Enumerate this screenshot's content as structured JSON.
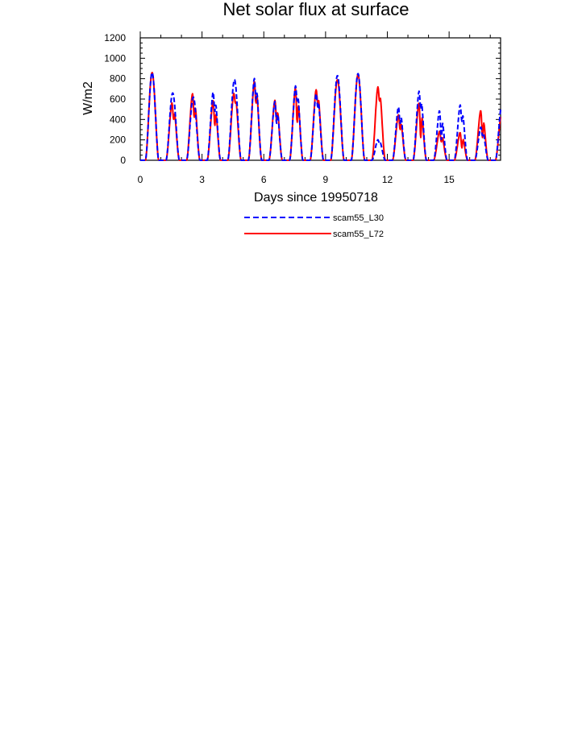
{
  "chart_data": {
    "type": "line",
    "title": "Net solar flux at surface",
    "xlabel": "Days since 19950718",
    "ylabel": "W/m2",
    "xlim": [
      0,
      17.5
    ],
    "ylim": [
      0,
      1200
    ],
    "x_ticks": [
      0,
      3,
      6,
      9,
      12,
      15
    ],
    "y_ticks": [
      0,
      200,
      400,
      600,
      800,
      1000,
      1200
    ],
    "grid": false,
    "legend": "below",
    "series": [
      {
        "name": "scam55_L30",
        "color": "#0000ff",
        "dash": "dashed",
        "day_peaks": [
          860,
          660,
          620,
          700,
          790,
          840,
          610,
          760,
          680,
          830,
          850,
          210,
          550,
          710,
          520,
          570,
          340,
          560
        ],
        "day_dips": [
          null,
          null,
          null,
          480,
          null,
          600,
          360,
          580,
          520,
          null,
          null,
          160,
          360,
          500,
          200,
          380,
          240,
          null
        ]
      },
      {
        "name": "scam55_L72",
        "color": "#ff0000",
        "dash": "solid",
        "day_peaks": [
          860,
          590,
          690,
          620,
          680,
          810,
          620,
          750,
          720,
          790,
          840,
          750,
          470,
          600,
          300,
          290,
          520,
          480
        ],
        "day_dips": [
          null,
          400,
          420,
          340,
          560,
          560,
          390,
          370,
          560,
          null,
          null,
          580,
          300,
          220,
          180,
          120,
          220,
          null
        ]
      }
    ]
  }
}
